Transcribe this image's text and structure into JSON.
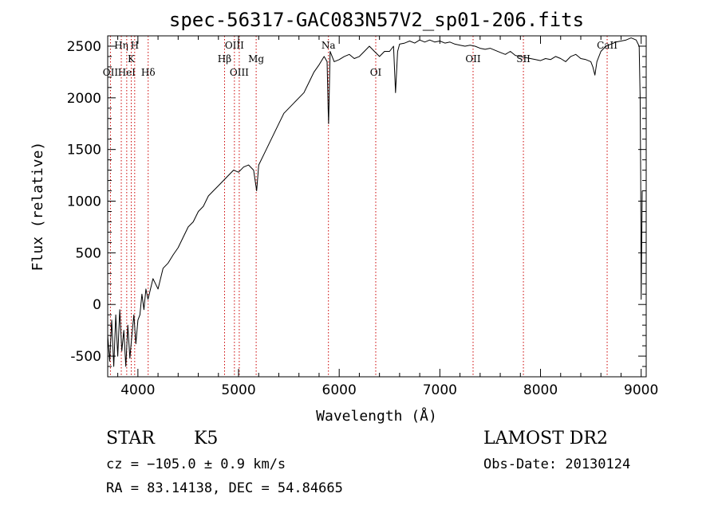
{
  "chart_data": {
    "type": "line",
    "title": "spec-56317-GAC083N57V2_sp01-206.fits",
    "xlabel": "Wavelength (Å)",
    "ylabel": "Flux (relative)",
    "xlim": [
      3700,
      9050
    ],
    "ylim": [
      -700,
      2600
    ],
    "xticks": [
      4000,
      5000,
      6000,
      7000,
      8000,
      9000
    ],
    "yticks": [
      -500,
      0,
      500,
      1000,
      1500,
      2000,
      2500
    ],
    "grid": false,
    "series": [
      {
        "points": [
          [
            3700,
            -300
          ],
          [
            3720,
            -550
          ],
          [
            3740,
            -150
          ],
          [
            3760,
            -600
          ],
          [
            3780,
            -100
          ],
          [
            3800,
            -500
          ],
          [
            3820,
            -50
          ],
          [
            3840,
            -450
          ],
          [
            3860,
            -250
          ],
          [
            3880,
            -600
          ],
          [
            3900,
            -200
          ],
          [
            3920,
            -520
          ],
          [
            3940,
            -300
          ],
          [
            3960,
            -100
          ],
          [
            3980,
            -380
          ],
          [
            4000,
            -150
          ],
          [
            4020,
            -100
          ],
          [
            4040,
            100
          ],
          [
            4060,
            -50
          ],
          [
            4080,
            150
          ],
          [
            4100,
            50
          ],
          [
            4150,
            250
          ],
          [
            4200,
            150
          ],
          [
            4250,
            350
          ],
          [
            4300,
            400
          ],
          [
            4350,
            480
          ],
          [
            4400,
            550
          ],
          [
            4450,
            650
          ],
          [
            4500,
            750
          ],
          [
            4550,
            800
          ],
          [
            4600,
            900
          ],
          [
            4650,
            950
          ],
          [
            4700,
            1050
          ],
          [
            4750,
            1100
          ],
          [
            4800,
            1150
          ],
          [
            4850,
            1200
          ],
          [
            4900,
            1250
          ],
          [
            4950,
            1300
          ],
          [
            5000,
            1280
          ],
          [
            5050,
            1330
          ],
          [
            5100,
            1350
          ],
          [
            5150,
            1300
          ],
          [
            5180,
            1100
          ],
          [
            5200,
            1350
          ],
          [
            5250,
            1450
          ],
          [
            5300,
            1550
          ],
          [
            5350,
            1650
          ],
          [
            5400,
            1750
          ],
          [
            5450,
            1850
          ],
          [
            5500,
            1900
          ],
          [
            5550,
            1950
          ],
          [
            5600,
            2000
          ],
          [
            5650,
            2050
          ],
          [
            5700,
            2150
          ],
          [
            5750,
            2250
          ],
          [
            5800,
            2320
          ],
          [
            5850,
            2400
          ],
          [
            5880,
            2350
          ],
          [
            5890,
            1900
          ],
          [
            5895,
            1750
          ],
          [
            5900,
            2000
          ],
          [
            5910,
            2450
          ],
          [
            5950,
            2350
          ],
          [
            6000,
            2370
          ],
          [
            6050,
            2400
          ],
          [
            6100,
            2420
          ],
          [
            6150,
            2380
          ],
          [
            6200,
            2400
          ],
          [
            6250,
            2450
          ],
          [
            6300,
            2500
          ],
          [
            6350,
            2450
          ],
          [
            6400,
            2400
          ],
          [
            6450,
            2450
          ],
          [
            6500,
            2450
          ],
          [
            6540,
            2500
          ],
          [
            6560,
            2050
          ],
          [
            6580,
            2450
          ],
          [
            6600,
            2520
          ],
          [
            6650,
            2530
          ],
          [
            6700,
            2550
          ],
          [
            6750,
            2530
          ],
          [
            6800,
            2560
          ],
          [
            6850,
            2540
          ],
          [
            6900,
            2560
          ],
          [
            6950,
            2540
          ],
          [
            7000,
            2550
          ],
          [
            7050,
            2530
          ],
          [
            7100,
            2540
          ],
          [
            7150,
            2520
          ],
          [
            7200,
            2510
          ],
          [
            7250,
            2500
          ],
          [
            7300,
            2510
          ],
          [
            7350,
            2500
          ],
          [
            7400,
            2480
          ],
          [
            7450,
            2470
          ],
          [
            7500,
            2480
          ],
          [
            7550,
            2460
          ],
          [
            7600,
            2440
          ],
          [
            7650,
            2420
          ],
          [
            7700,
            2450
          ],
          [
            7750,
            2410
          ],
          [
            7800,
            2400
          ],
          [
            7850,
            2390
          ],
          [
            7900,
            2380
          ],
          [
            7950,
            2370
          ],
          [
            8000,
            2360
          ],
          [
            8050,
            2380
          ],
          [
            8100,
            2370
          ],
          [
            8150,
            2400
          ],
          [
            8200,
            2380
          ],
          [
            8250,
            2350
          ],
          [
            8300,
            2400
          ],
          [
            8350,
            2420
          ],
          [
            8400,
            2380
          ],
          [
            8450,
            2370
          ],
          [
            8500,
            2350
          ],
          [
            8520,
            2300
          ],
          [
            8540,
            2220
          ],
          [
            8560,
            2350
          ],
          [
            8600,
            2450
          ],
          [
            8650,
            2500
          ],
          [
            8700,
            2520
          ],
          [
            8750,
            2540
          ],
          [
            8800,
            2550
          ],
          [
            8850,
            2560
          ],
          [
            8900,
            2580
          ],
          [
            8950,
            2560
          ],
          [
            8980,
            2500
          ],
          [
            8990,
            2000
          ],
          [
            8995,
            1250
          ],
          [
            9000,
            50
          ],
          [
            9010,
            1100
          ]
        ]
      }
    ],
    "lines": [
      {
        "label": "OII",
        "wl": 3727,
        "row": 3
      },
      {
        "label": "Hη",
        "wl": 3835,
        "row": 1
      },
      {
        "label": "HeI",
        "wl": 3889,
        "row": 3
      },
      {
        "label": "K",
        "wl": 3934,
        "row": 2
      },
      {
        "label": "H",
        "wl": 3968,
        "row": 1
      },
      {
        "label": "Hδ",
        "wl": 4102,
        "row": 3
      },
      {
        "label": "Hβ",
        "wl": 4861,
        "row": 2
      },
      {
        "label": "OIII",
        "wl": 4959,
        "row": 1
      },
      {
        "label": "OIII",
        "wl": 5007,
        "row": 3
      },
      {
        "label": "Mg",
        "wl": 5175,
        "row": 2
      },
      {
        "label": "Na",
        "wl": 5893,
        "row": 1
      },
      {
        "label": "OI",
        "wl": 6363,
        "row": 3
      },
      {
        "label": "OII",
        "wl": 7330,
        "row": 2
      },
      {
        "label": "SII",
        "wl": 7830,
        "row": 2
      },
      {
        "label": "CaII",
        "wl": 8662,
        "row": 1
      }
    ],
    "line_color": "#cc0000"
  },
  "info": {
    "class": "STAR",
    "subclass": "K5",
    "survey": "LAMOST DR2",
    "cz": "cz = −105.0 ± 0.9 km/s",
    "obs_date": "Obs-Date: 20130124",
    "radec": "RA =  83.14138, DEC =  54.84665"
  }
}
